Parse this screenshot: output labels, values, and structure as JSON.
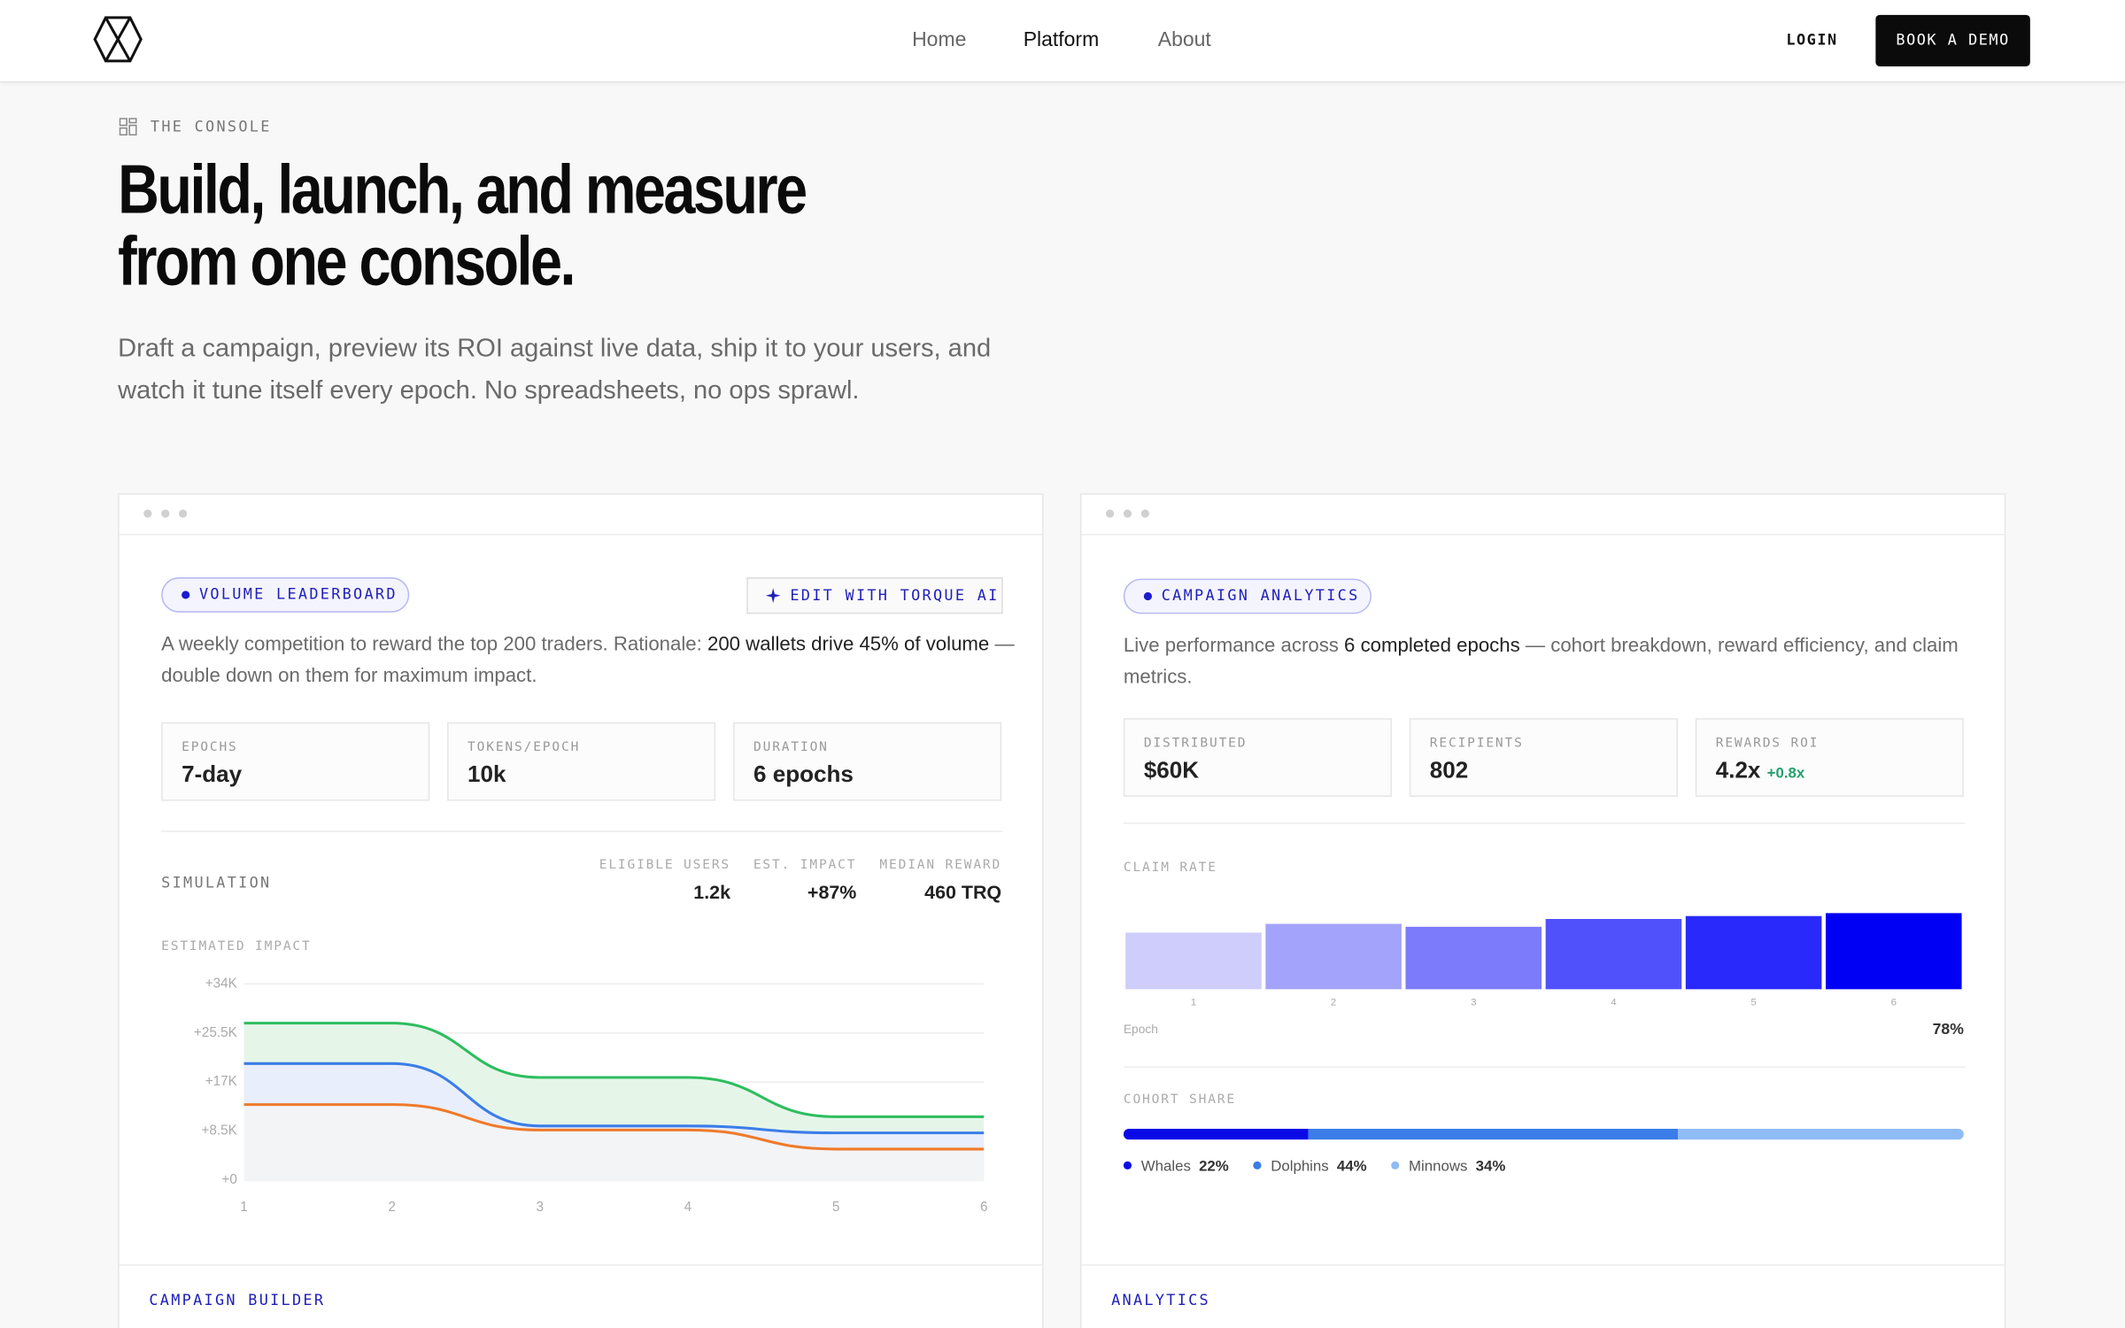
{
  "nav": {
    "links": [
      "Home",
      "Platform",
      "About"
    ],
    "login": "LOGIN",
    "cta": "BOOK A DEMO"
  },
  "hero": {
    "eyebrow": "THE CONSOLE",
    "title_lines": [
      "Build, launch, and measure",
      "from one console."
    ],
    "subtitle_lines": [
      "Draft a campaign, preview its ROI against live data, ship it to your users, and",
      "watch it tune itself every epoch. No spreadsheets, no ops sprawl."
    ]
  },
  "builder": {
    "tag": "VOLUME LEADERBOARD",
    "edit": "EDIT WITH TORQUE AI",
    "description": [
      "A weekly competition to reward the top 200 traders. Rationale: ",
      "200 wallets drive 45% of volume",
      " — double down on them for maximum impact."
    ],
    "stats": [
      {
        "label": "EPOCHS",
        "value": "7-day"
      },
      {
        "label": "TOKENS/EPOCH",
        "value": "10k"
      },
      {
        "label": "DURATION",
        "value": "6 epochs"
      }
    ],
    "simulation": {
      "title": "SIMULATION",
      "metrics": [
        {
          "label": "ELIGIBLE USERS",
          "value": "1.2k"
        },
        {
          "label": "EST. IMPACT",
          "value": "+87%"
        },
        {
          "label": "MEDIAN REWARD",
          "value": "460 TRQ"
        }
      ]
    },
    "chart": {
      "type": "line",
      "title": "ESTIMATED IMPACT",
      "x": [
        1,
        2,
        3,
        4,
        5,
        6
      ],
      "xlim": [
        1,
        6
      ],
      "xticks": [
        1,
        2,
        3,
        4,
        5,
        6
      ],
      "ylim": [
        0,
        34000
      ],
      "yticks": [
        {
          "value": 0,
          "label": "+0"
        },
        {
          "value": 8500,
          "label": "+8.5K"
        },
        {
          "value": 17000,
          "label": "+17K"
        },
        {
          "value": 25500,
          "label": "+25.5K"
        },
        {
          "value": 34000,
          "label": "+34K"
        }
      ],
      "grid": true,
      "series": [
        {
          "color": "#2ebd5f",
          "fill": "#e5f6e9",
          "values": [
            27200,
            27200,
            17800,
            17800,
            11000,
            11000
          ]
        },
        {
          "color": "#3b7de8",
          "fill": "#e8eefb",
          "values": [
            20200,
            20200,
            9400,
            9400,
            8200,
            8200
          ]
        },
        {
          "color": "#ef7a2a",
          "fill": "#f3f4f6",
          "values": [
            13100,
            13100,
            8700,
            8700,
            5400,
            5400
          ]
        }
      ]
    },
    "footer": "CAMPAIGN BUILDER"
  },
  "analytics": {
    "tag": "CAMPAIGN ANALYTICS",
    "description": [
      "Live performance across ",
      "6 completed epochs",
      " — cohort breakdown, reward efficiency, and claim metrics."
    ],
    "stats": [
      {
        "label": "DISTRIBUTED",
        "value": "$60K"
      },
      {
        "label": "RECIPIENTS",
        "value": "802"
      },
      {
        "label": "REWARDS ROI",
        "value": "4.2x",
        "delta": "+0.8x"
      }
    ],
    "claim_rate": {
      "type": "bar",
      "title": "CLAIM RATE",
      "categories": [
        "1",
        "2",
        "3",
        "4",
        "5",
        "6"
      ],
      "x_label": "Epoch",
      "values": [
        58,
        67,
        64,
        72,
        75,
        78
      ],
      "value_labels": [
        null,
        null,
        null,
        null,
        null,
        "78%"
      ],
      "colors": [
        "#cfcdfb",
        "#a4a3fb",
        "#7c7bfb",
        "#5151fb",
        "#2929fb",
        "#0000f5"
      ],
      "ylim": [
        0,
        100
      ]
    },
    "cohort": {
      "type": "stacked-bar",
      "title": "COHORT SHARE",
      "series": [
        {
          "name": "Whales",
          "color": "#0a0ae6",
          "value": 22,
          "value_label": "22%"
        },
        {
          "name": "Dolphins",
          "color": "#3b7de8",
          "value": 44,
          "value_label": "44%"
        },
        {
          "name": "Minnows",
          "color": "#8fbcf5",
          "value": 34,
          "value_label": "34%"
        }
      ]
    },
    "footer": "ANALYTICS"
  }
}
